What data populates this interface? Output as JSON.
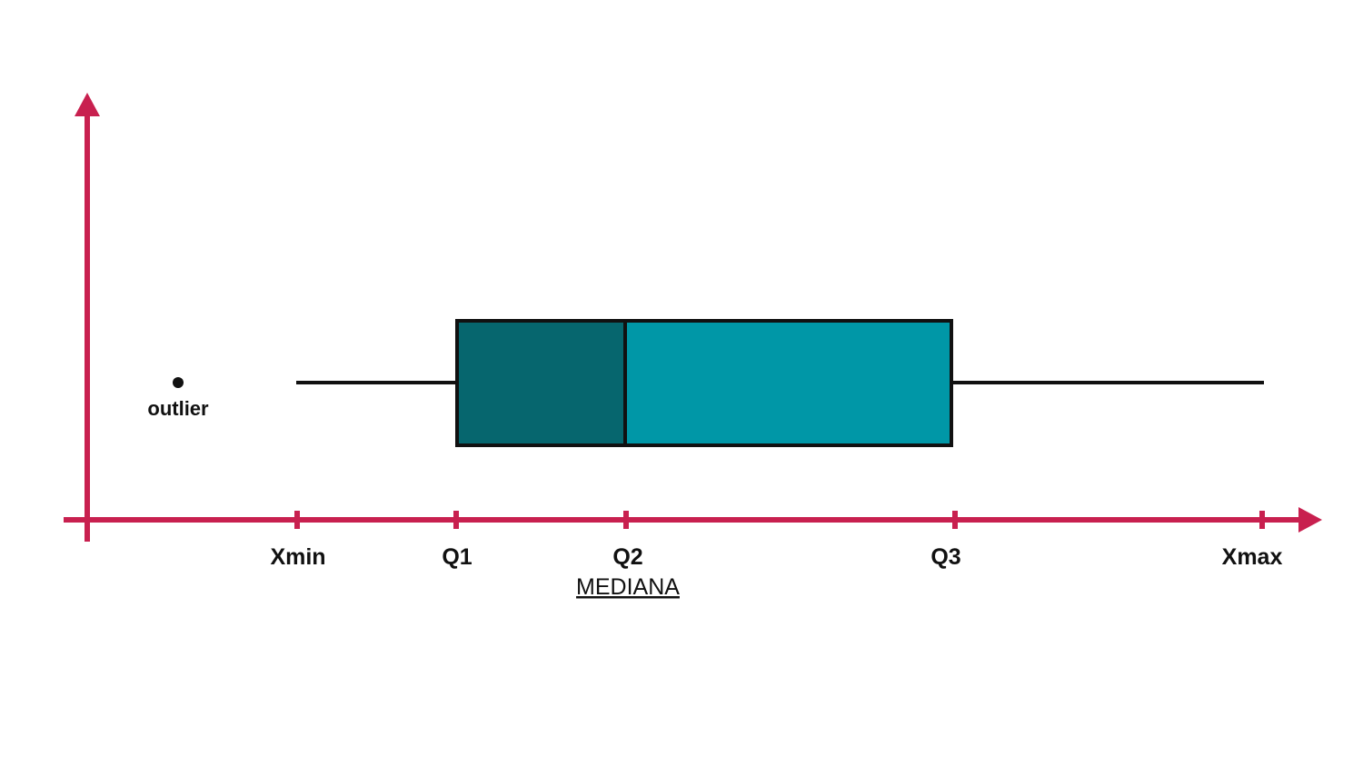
{
  "colors": {
    "axis": "#C8204F",
    "box_lower": "#06666E",
    "box_upper": "#0097A7",
    "stroke": "#111111",
    "background": "#FFFFFF"
  },
  "labels": {
    "xmin": "Xmin",
    "q1": "Q1",
    "q2": "Q2",
    "median": "MEDIANA",
    "q3": "Q3",
    "xmax": "Xmax",
    "outlier": "outlier"
  }
}
